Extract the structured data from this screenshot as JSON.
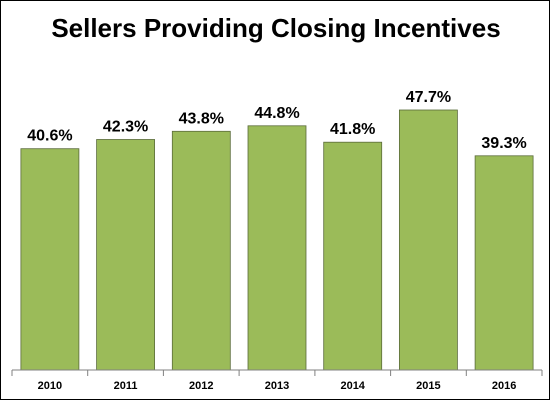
{
  "chart_data": {
    "type": "bar",
    "title": "Sellers Providing Closing Incentives",
    "categories": [
      "2010",
      "2011",
      "2012",
      "2013",
      "2014",
      "2015",
      "2016"
    ],
    "values": [
      40.6,
      42.3,
      43.8,
      44.8,
      41.8,
      47.7,
      39.3
    ],
    "data_labels": [
      "40.6%",
      "42.3%",
      "43.8%",
      "44.8%",
      "41.8%",
      "47.7%",
      "39.3%"
    ],
    "xlabel": "",
    "ylabel": "",
    "ylim": [
      0,
      50
    ],
    "grid": false,
    "legend": "none",
    "colors": {
      "bar_fill": "#9bbb59",
      "bar_stroke": "#5a6b3a",
      "axis": "#808080"
    }
  }
}
